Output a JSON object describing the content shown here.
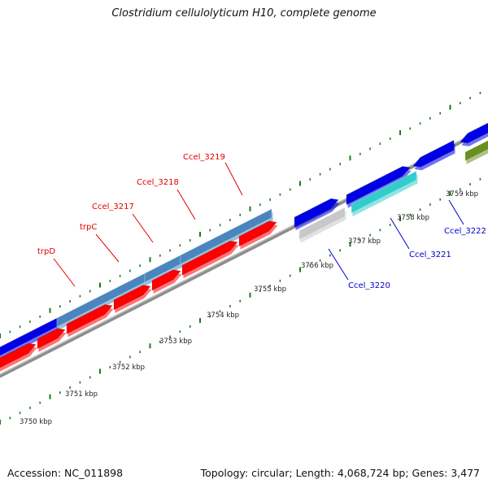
{
  "title": "Clostridium cellulolyticum H10, complete genome",
  "footer": {
    "accession": "Accession: NC_011898",
    "info": "Topology: circular; Length: 4,068,724 bp; Genes: 3,477"
  },
  "colors": {
    "cds_red": "#ff0000",
    "cds_steelblue": "#4a86bd",
    "cds_blue": "#0000e6",
    "cds_grey": "#c8c8c8",
    "cds_cyan": "#33cccc",
    "cds_olive": "#6b8e23",
    "label_red": "#e00000",
    "label_blue": "#0000cc",
    "tick_green": "#1a7a1a",
    "backbone": "#a0a0a0"
  },
  "kbp_labels": [
    "3750 kbp",
    "3751 kbp",
    "3752 kbp",
    "3753 kbp",
    "3754 kbp",
    "3755 kbp",
    "3756 kbp",
    "3757 kbp",
    "3758 kbp",
    "3759 kbp"
  ],
  "gene_labels": [
    {
      "text": "trpD",
      "color": "red"
    },
    {
      "text": "trpC",
      "color": "red"
    },
    {
      "text": "Ccel_3217",
      "color": "red"
    },
    {
      "text": "Ccel_3218",
      "color": "red"
    },
    {
      "text": "Ccel_3219",
      "color": "red"
    },
    {
      "text": "Ccel_3220",
      "color": "blue"
    },
    {
      "text": "Ccel_3221",
      "color": "blue"
    },
    {
      "text": "Ccel_3222",
      "color": "blue"
    }
  ]
}
